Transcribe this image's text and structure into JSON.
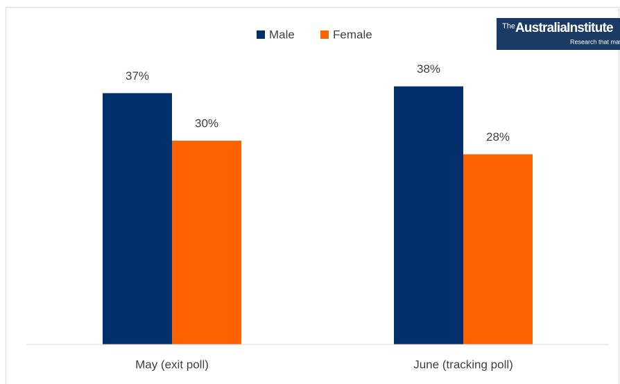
{
  "chart_data": {
    "type": "bar",
    "categories": [
      "May (exit poll)",
      "June (tracking poll)"
    ],
    "series": [
      {
        "name": "Male",
        "color": "#002f6c",
        "values": [
          37,
          38
        ],
        "value_labels": [
          "37%",
          "38%"
        ]
      },
      {
        "name": "Female",
        "color": "#ff6200",
        "values": [
          30,
          28
        ],
        "value_labels": [
          "30%",
          "28%"
        ]
      }
    ],
    "ylim": [
      0,
      50
    ],
    "legend": "top"
  },
  "logo": {
    "prefix": "The",
    "name": "AustraliaInstitute",
    "tagline": "Research that matters"
  }
}
